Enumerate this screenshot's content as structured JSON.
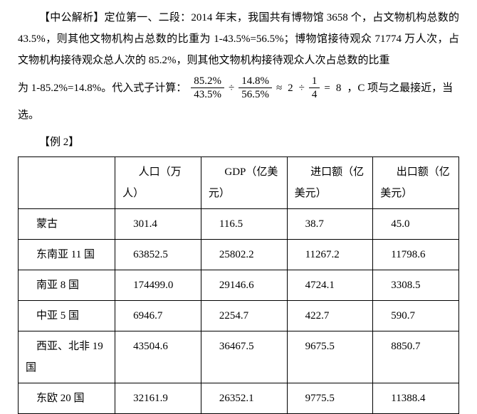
{
  "analysis": {
    "para1": "【中公解析】定位第一、二段：2014 年末，我国共有博物馆 3658 个，占文物机构总数的 43.5%，则其他文物机构占总数的比重为 1-43.5%=56.5%；博物馆接待观众 71774 万人次，占文物机构接待观众总人次的 85.2%，则其他文物机构接待观众人次占总数的比重",
    "para2_prefix": "为 1-85.2%=14.8%。代入式子计算：",
    "para2_suffix": "，C 项与之最接近，当",
    "para3": "选。",
    "formula": {
      "frac1_num": "85.2%",
      "frac1_den": "43.5%",
      "div": "÷",
      "frac2_num": "14.8%",
      "frac2_den": "56.5%",
      "approx": "≈",
      "val1": "2",
      "div2": "÷",
      "frac3_num": "1",
      "frac3_den": "4",
      "eq": "=",
      "result": "8"
    }
  },
  "example_label": "【例 2】",
  "table": {
    "headers": {
      "region": "",
      "pop": "人口（万人）",
      "gdp": "GDP（亿美元）",
      "import": "进口额（亿美元）",
      "export": "出口额（亿美元）"
    },
    "rows": [
      {
        "region": "蒙古",
        "pop": "301.4",
        "gdp": "116.5",
        "import": "38.7",
        "export": "45.0"
      },
      {
        "region": "东南亚 11 国",
        "pop": "63852.5",
        "gdp": "25802.2",
        "import": "11267.2",
        "export": "11798.6"
      },
      {
        "region": "南亚 8 国",
        "pop": "174499.0",
        "gdp": "29146.6",
        "import": "4724.1",
        "export": "3308.5"
      },
      {
        "region": "中亚 5 国",
        "pop": "6946.7",
        "gdp": "2254.7",
        "import": "422.7",
        "export": "590.7"
      },
      {
        "region": "西亚、北非 19 国",
        "pop": "43504.6",
        "gdp": "36467.5",
        "import": "9675.5",
        "export": "8850.7"
      },
      {
        "region": "东欧 20 国",
        "pop": "32161.9",
        "gdp": "26352.1",
        "import": "9775.5",
        "export": "11388.4"
      }
    ]
  }
}
